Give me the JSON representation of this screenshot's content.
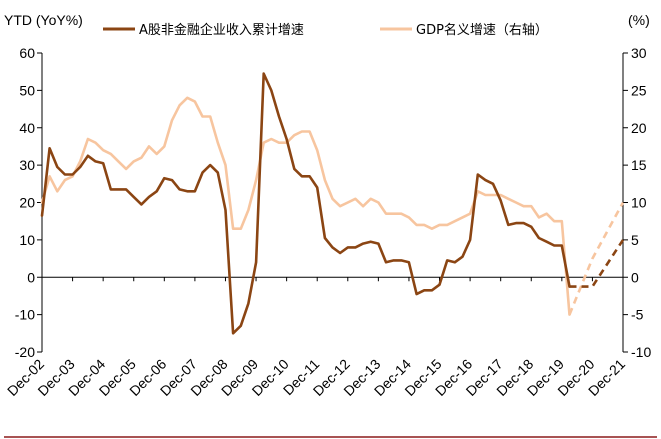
{
  "chart_data": {
    "type": "line",
    "left_axis_title": "YTD (YoY%)",
    "right_axis_title": "(%)",
    "x_ticks": [
      "Dec-02",
      "Dec-03",
      "Dec-04",
      "Dec-05",
      "Dec-06",
      "Dec-07",
      "Dec-08",
      "Dec-09",
      "Dec-10",
      "Dec-11",
      "Dec-12",
      "Dec-13",
      "Dec-14",
      "Dec-15",
      "Dec-16",
      "Dec-17",
      "Dec-18",
      "Dec-19",
      "Dec-20",
      "Dec-21"
    ],
    "x_range": [
      2002.95,
      2021.95
    ],
    "y_left": {
      "min": -20,
      "max": 60,
      "ticks": [
        -20,
        -10,
        0,
        10,
        20,
        30,
        40,
        50,
        60
      ]
    },
    "y_right": {
      "min": -10,
      "max": 30,
      "ticks": [
        -10,
        -5,
        0,
        5,
        10,
        15,
        20,
        25,
        30
      ],
      "negative_tick_color": "#e03c31"
    },
    "grid": false,
    "legend_position": "top",
    "series": [
      {
        "name": "A股非金融企业收入累计增速",
        "axis": "left",
        "color": "#8b4513",
        "points": [
          [
            2002.95,
            16.5
          ],
          [
            2003.2,
            34.5
          ],
          [
            2003.45,
            29.5
          ],
          [
            2003.7,
            27.5
          ],
          [
            2003.95,
            27.5
          ],
          [
            2004.2,
            29.5
          ],
          [
            2004.45,
            32.5
          ],
          [
            2004.7,
            31
          ],
          [
            2004.95,
            30.5
          ],
          [
            2005.2,
            23.5
          ],
          [
            2005.45,
            23.5
          ],
          [
            2005.7,
            23.5
          ],
          [
            2005.95,
            21.5
          ],
          [
            2006.2,
            19.5
          ],
          [
            2006.45,
            21.5
          ],
          [
            2006.7,
            23
          ],
          [
            2006.95,
            26.5
          ],
          [
            2007.2,
            26
          ],
          [
            2007.45,
            23.5
          ],
          [
            2007.7,
            23
          ],
          [
            2007.95,
            23
          ],
          [
            2008.2,
            28
          ],
          [
            2008.45,
            30
          ],
          [
            2008.7,
            28
          ],
          [
            2008.95,
            18
          ],
          [
            2009.2,
            -15
          ],
          [
            2009.45,
            -13
          ],
          [
            2009.7,
            -7
          ],
          [
            2009.95,
            4
          ],
          [
            2010.2,
            54.5
          ],
          [
            2010.45,
            50
          ],
          [
            2010.7,
            43
          ],
          [
            2010.95,
            37
          ],
          [
            2011.2,
            29
          ],
          [
            2011.45,
            27
          ],
          [
            2011.7,
            27
          ],
          [
            2011.95,
            24
          ],
          [
            2012.2,
            10.5
          ],
          [
            2012.45,
            8
          ],
          [
            2012.7,
            6.5
          ],
          [
            2012.95,
            8
          ],
          [
            2013.2,
            8
          ],
          [
            2013.45,
            9
          ],
          [
            2013.7,
            9.5
          ],
          [
            2013.95,
            9
          ],
          [
            2014.2,
            4
          ],
          [
            2014.45,
            4.5
          ],
          [
            2014.7,
            4.5
          ],
          [
            2014.95,
            4
          ],
          [
            2015.2,
            -4.5
          ],
          [
            2015.45,
            -3.5
          ],
          [
            2015.7,
            -3.5
          ],
          [
            2015.95,
            -2
          ],
          [
            2016.2,
            4.5
          ],
          [
            2016.45,
            4
          ],
          [
            2016.7,
            5.5
          ],
          [
            2016.95,
            10
          ],
          [
            2017.2,
            27.5
          ],
          [
            2017.45,
            26
          ],
          [
            2017.7,
            25
          ],
          [
            2017.95,
            20.5
          ],
          [
            2018.2,
            14
          ],
          [
            2018.45,
            14.5
          ],
          [
            2018.7,
            14.5
          ],
          [
            2018.95,
            13.5
          ],
          [
            2019.2,
            10.5
          ],
          [
            2019.45,
            9.5
          ],
          [
            2019.7,
            8.5
          ],
          [
            2019.95,
            8.5
          ],
          [
            2020.2,
            -2.5
          ]
        ],
        "forecast": [
          [
            2020.2,
            -2.5
          ],
          [
            2020.95,
            -2.5
          ],
          [
            2021.95,
            10
          ]
        ]
      },
      {
        "name": "GDP名义增速（右轴）",
        "axis": "right",
        "color": "#f7c59f",
        "points": [
          [
            2002.95,
            10
          ],
          [
            2003.2,
            13.5
          ],
          [
            2003.45,
            11.5
          ],
          [
            2003.7,
            13
          ],
          [
            2003.95,
            13.5
          ],
          [
            2004.2,
            15.5
          ],
          [
            2004.45,
            18.5
          ],
          [
            2004.7,
            18
          ],
          [
            2004.95,
            17
          ],
          [
            2005.2,
            16.5
          ],
          [
            2005.45,
            15.5
          ],
          [
            2005.7,
            14.5
          ],
          [
            2005.95,
            15.5
          ],
          [
            2006.2,
            16
          ],
          [
            2006.45,
            17.5
          ],
          [
            2006.7,
            16.5
          ],
          [
            2006.95,
            17.5
          ],
          [
            2007.2,
            21
          ],
          [
            2007.45,
            23
          ],
          [
            2007.7,
            24
          ],
          [
            2007.95,
            23.5
          ],
          [
            2008.2,
            21.5
          ],
          [
            2008.45,
            21.5
          ],
          [
            2008.7,
            18
          ],
          [
            2008.95,
            15
          ],
          [
            2009.2,
            6.5
          ],
          [
            2009.45,
            6.5
          ],
          [
            2009.7,
            9
          ],
          [
            2009.95,
            13
          ],
          [
            2010.2,
            18
          ],
          [
            2010.45,
            18.5
          ],
          [
            2010.7,
            18
          ],
          [
            2010.95,
            18
          ],
          [
            2011.2,
            19
          ],
          [
            2011.45,
            19.5
          ],
          [
            2011.7,
            19.5
          ],
          [
            2011.95,
            17
          ],
          [
            2012.2,
            13
          ],
          [
            2012.45,
            10.5
          ],
          [
            2012.7,
            9.5
          ],
          [
            2012.95,
            10
          ],
          [
            2013.2,
            10.5
          ],
          [
            2013.45,
            9.5
          ],
          [
            2013.7,
            10.5
          ],
          [
            2013.95,
            10
          ],
          [
            2014.2,
            8.5
          ],
          [
            2014.45,
            8.5
          ],
          [
            2014.7,
            8.5
          ],
          [
            2014.95,
            8
          ],
          [
            2015.2,
            7
          ],
          [
            2015.45,
            7
          ],
          [
            2015.7,
            6.5
          ],
          [
            2015.95,
            7
          ],
          [
            2016.2,
            7
          ],
          [
            2016.45,
            7.5
          ],
          [
            2016.7,
            8
          ],
          [
            2016.95,
            8.5
          ],
          [
            2017.2,
            11.5
          ],
          [
            2017.45,
            11
          ],
          [
            2017.7,
            11
          ],
          [
            2017.95,
            11
          ],
          [
            2018.2,
            10.5
          ],
          [
            2018.45,
            10
          ],
          [
            2018.7,
            9.5
          ],
          [
            2018.95,
            9.5
          ],
          [
            2019.2,
            8
          ],
          [
            2019.45,
            8.5
          ],
          [
            2019.7,
            7.5
          ],
          [
            2019.95,
            7.5
          ],
          [
            2020.2,
            -5
          ]
        ],
        "forecast": [
          [
            2020.2,
            -5
          ],
          [
            2020.95,
            2.5
          ],
          [
            2021.95,
            10
          ]
        ]
      }
    ]
  }
}
